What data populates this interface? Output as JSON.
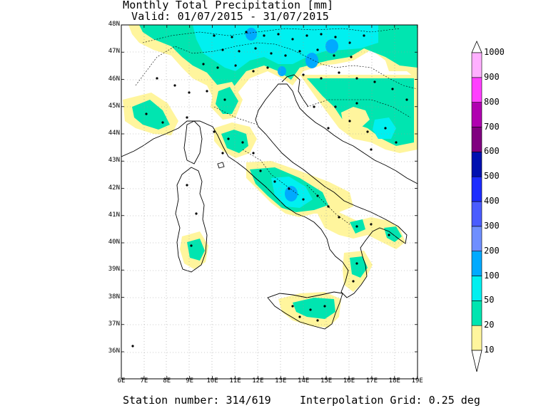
{
  "title_line1": "Monthly Total Precipitation [mm]",
  "title_line2": "Valid: 01/07/2015 - 31/07/2015",
  "footer_station": "Station number: 314/619",
  "footer_grid": "Interpolation Grid: 0.25 deg",
  "lat_labels": [
    "48N",
    "47N",
    "46N",
    "45N",
    "44N",
    "43N",
    "42N",
    "41N",
    "40N",
    "39N",
    "38N",
    "37N",
    "36N"
  ],
  "lon_labels": [
    "6E",
    "7E",
    "8E",
    "9E",
    "10E",
    "11E",
    "12E",
    "13E",
    "14E",
    "15E",
    "16E",
    "17E",
    "18E",
    "19E"
  ],
  "legend": {
    "levels": [
      "10",
      "20",
      "50",
      "100",
      "200",
      "300",
      "400",
      "500",
      "600",
      "700",
      "800",
      "900",
      "1000"
    ],
    "colors": [
      "#ffffff",
      "#fff59d",
      "#00e5b0",
      "#00f0f0",
      "#00aaff",
      "#6f8fff",
      "#4a5cff",
      "#1c2cff",
      "#0010b0",
      "#800080",
      "#b000b0",
      "#ff40ff",
      "#ffb0ff",
      "#ffffff"
    ]
  }
}
